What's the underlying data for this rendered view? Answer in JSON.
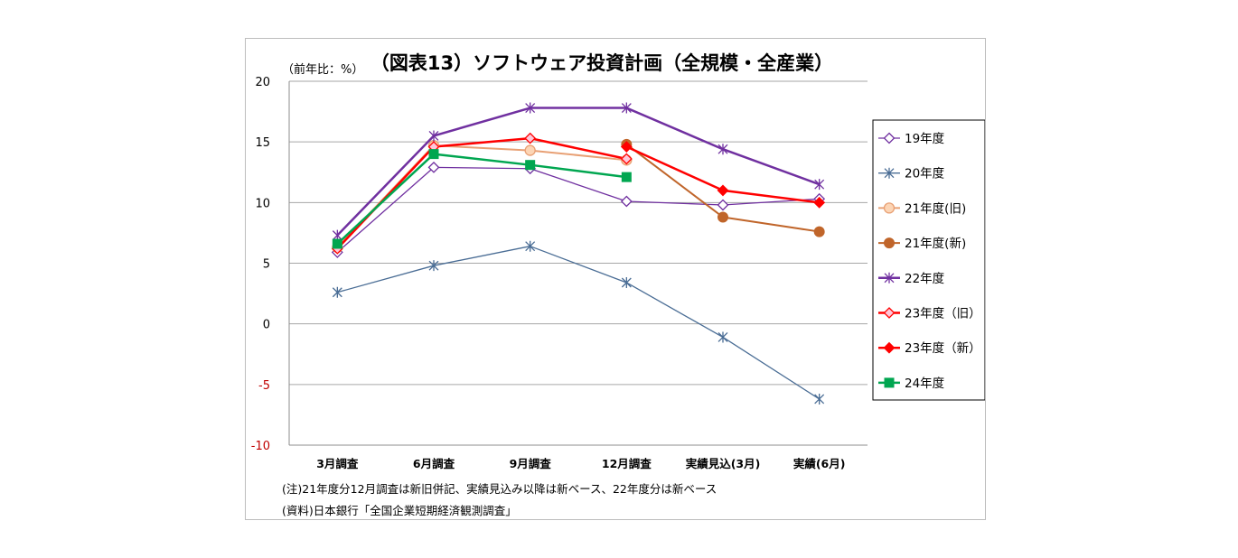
{
  "chart_data": {
    "type": "line",
    "title": "（図表13）ソフトウェア投資計画（全規模・全産業）",
    "ylabel": "（前年比：%）",
    "xlabel": "",
    "categories": [
      "3月調査",
      "6月調査",
      "9月調査",
      "12月調査",
      "実績見込(3月)",
      "実績(6月)"
    ],
    "ylim": [
      -10,
      20
    ],
    "yticks": [
      "20",
      "15",
      "10",
      "5",
      "0",
      "-5",
      "-10"
    ],
    "ytick_values": [
      20,
      15,
      10,
      5,
      0,
      -5,
      -10
    ],
    "grid": true,
    "legend_position": "right",
    "series": [
      {
        "name": "19年度",
        "color": "#7030a0",
        "marker": "diamond-open",
        "width": 1.3,
        "values": [
          5.9,
          12.9,
          12.8,
          10.1,
          9.8,
          10.3
        ]
      },
      {
        "name": "20年度",
        "color": "#4a6d95",
        "marker": "star",
        "width": 1.3,
        "values": [
          2.6,
          4.8,
          6.4,
          3.4,
          -1.1,
          -6.2
        ]
      },
      {
        "name": "21年度(旧)",
        "color": "#e8a074",
        "marker": "circle-light",
        "width": 2,
        "values": [
          6.3,
          14.7,
          14.3,
          13.5,
          null,
          null
        ]
      },
      {
        "name": "21年度(新)",
        "color": "#c0652a",
        "marker": "circle",
        "width": 2,
        "values": [
          null,
          null,
          null,
          14.8,
          8.8,
          7.6
        ]
      },
      {
        "name": "22年度",
        "color": "#7030a0",
        "marker": "star",
        "width": 2.5,
        "values": [
          7.3,
          15.5,
          17.8,
          17.8,
          14.4,
          11.5
        ]
      },
      {
        "name": "23年度（旧）",
        "color": "#ff0000",
        "marker": "diamond-pink",
        "width": 2.5,
        "values": [
          6.2,
          14.6,
          15.3,
          13.6,
          null,
          null
        ]
      },
      {
        "name": "23年度（新）",
        "color": "#ff0000",
        "marker": "diamond",
        "width": 2.5,
        "values": [
          null,
          null,
          null,
          14.6,
          11.0,
          10.0
        ]
      },
      {
        "name": "24年度",
        "color": "#00a650",
        "marker": "square",
        "width": 2.5,
        "values": [
          6.6,
          14.0,
          13.1,
          12.1,
          null,
          null
        ]
      }
    ]
  },
  "notes": [
    "(注)21年度分12月調査は新旧併記、実績見込み以降は新ベース、22年度分は新ベース",
    "(資料)日本銀行「全国企業短期経済観測調査」"
  ]
}
